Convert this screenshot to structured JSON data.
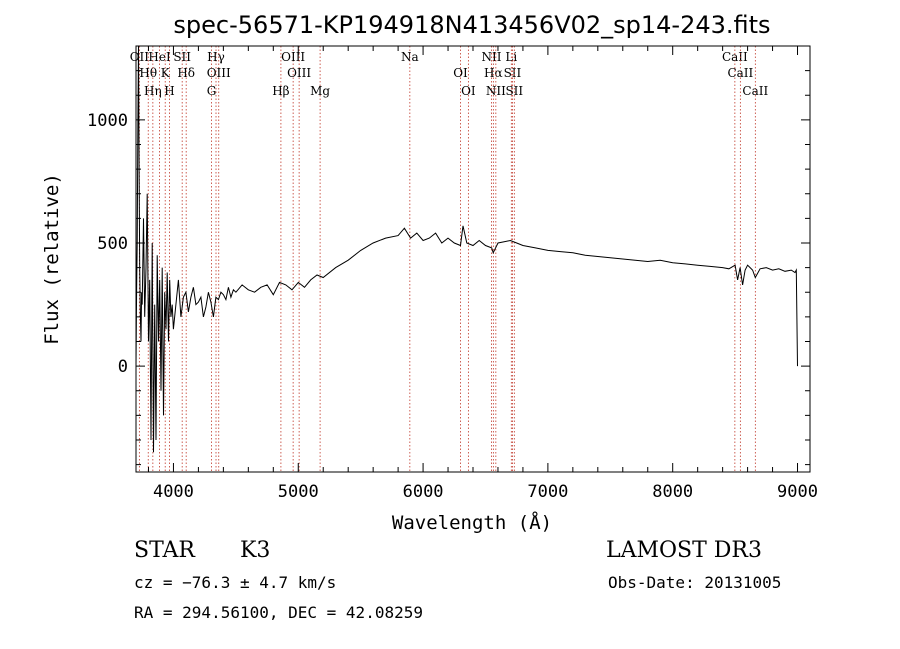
{
  "chart_data": {
    "type": "line",
    "title": "spec-56571-KP194918N413456V02_sp14-243.fits",
    "xlabel": "Wavelength (Å)",
    "ylabel": "Flux (relative)",
    "xlim": [
      3700,
      9100
    ],
    "ylim": [
      -430,
      1300
    ],
    "xticks": [
      4000,
      5000,
      6000,
      7000,
      8000,
      9000
    ],
    "yticks": [
      0,
      500,
      1000
    ],
    "grid": false,
    "series": [
      {
        "name": "flux",
        "x": [
          3700,
          3705,
          3710,
          3715,
          3720,
          3725,
          3730,
          3735,
          3740,
          3745,
          3750,
          3760,
          3770,
          3780,
          3790,
          3800,
          3810,
          3820,
          3830,
          3840,
          3850,
          3860,
          3870,
          3880,
          3890,
          3900,
          3910,
          3920,
          3930,
          3940,
          3950,
          3960,
          3970,
          3980,
          3990,
          4000,
          4020,
          4040,
          4060,
          4080,
          4100,
          4120,
          4140,
          4160,
          4180,
          4200,
          4220,
          4240,
          4260,
          4280,
          4300,
          4320,
          4340,
          4360,
          4380,
          4400,
          4420,
          4440,
          4460,
          4480,
          4500,
          4550,
          4600,
          4650,
          4700,
          4750,
          4800,
          4850,
          4900,
          4950,
          5000,
          5050,
          5100,
          5150,
          5200,
          5300,
          5400,
          5500,
          5600,
          5700,
          5800,
          5850,
          5900,
          5950,
          6000,
          6050,
          6100,
          6150,
          6200,
          6250,
          6300,
          6320,
          6350,
          6400,
          6450,
          6500,
          6550,
          6562,
          6600,
          6650,
          6700,
          6750,
          6800,
          6900,
          7000,
          7100,
          7200,
          7300,
          7400,
          7500,
          7600,
          7700,
          7800,
          7900,
          8000,
          8100,
          8200,
          8300,
          8400,
          8450,
          8500,
          8520,
          8540,
          8560,
          8580,
          8600,
          8620,
          8640,
          8662,
          8700,
          8750,
          8800,
          8850,
          8900,
          8950,
          8980,
          8990,
          9000
        ],
        "values": [
          0,
          300,
          500,
          1000,
          1350,
          800,
          400,
          200,
          100,
          300,
          250,
          600,
          200,
          400,
          700,
          100,
          350,
          -300,
          500,
          -350,
          250,
          -300,
          450,
          100,
          350,
          -100,
          400,
          -200,
          300,
          150,
          380,
          100,
          350,
          200,
          250,
          150,
          250,
          350,
          200,
          280,
          300,
          220,
          280,
          320,
          250,
          260,
          280,
          200,
          240,
          300,
          260,
          200,
          280,
          270,
          300,
          290,
          270,
          320,
          280,
          310,
          300,
          330,
          310,
          300,
          320,
          330,
          290,
          340,
          330,
          310,
          340,
          320,
          350,
          370,
          360,
          400,
          430,
          470,
          500,
          520,
          530,
          560,
          520,
          540,
          510,
          520,
          540,
          500,
          520,
          500,
          490,
          570,
          500,
          490,
          510,
          490,
          480,
          460,
          500,
          505,
          510,
          500,
          490,
          480,
          470,
          465,
          460,
          450,
          445,
          440,
          435,
          430,
          425,
          430,
          420,
          415,
          410,
          405,
          400,
          395,
          410,
          350,
          400,
          330,
          390,
          410,
          400,
          390,
          360,
          395,
          400,
          390,
          395,
          385,
          390,
          380,
          390,
          0
        ]
      }
    ],
    "lines": [
      {
        "label": "OII",
        "x": 3727
      },
      {
        "label": "Hθ",
        "x": 3798
      },
      {
        "label": "Hη",
        "x": 3835
      },
      {
        "label": "HeI",
        "x": 3889
      },
      {
        "label": "K",
        "x": 3934
      },
      {
        "label": "H",
        "x": 3968
      },
      {
        "label": "SII",
        "x": 4070
      },
      {
        "label": "Hδ",
        "x": 4102
      },
      {
        "label": "G",
        "x": 4305
      },
      {
        "label": "Hγ",
        "x": 4341
      },
      {
        "label": "OIII",
        "x": 4363
      },
      {
        "label": "Hβ",
        "x": 4861
      },
      {
        "label": "OIII",
        "x": 4959
      },
      {
        "label": "OIII",
        "x": 5007
      },
      {
        "label": "Mg",
        "x": 5175
      },
      {
        "label": "Na",
        "x": 5894
      },
      {
        "label": "OI",
        "x": 6300
      },
      {
        "label": "OI",
        "x": 6363
      },
      {
        "label": "NII",
        "x": 6548
      },
      {
        "label": "Hα",
        "x": 6563
      },
      {
        "label": "NII",
        "x": 6583
      },
      {
        "label": "Li",
        "x": 6707
      },
      {
        "label": "SII",
        "x": 6716
      },
      {
        "label": "SII",
        "x": 6731
      },
      {
        "label": "CaII",
        "x": 8498
      },
      {
        "label": "CaII",
        "x": 8542
      },
      {
        "label": "CaII",
        "x": 8662
      }
    ]
  },
  "info": {
    "object_class": "STAR",
    "subclass": "K3",
    "cz_text": "cz = −76.3 ± 4.7 km/s",
    "coords_text": "RA = 294.56100, DEC =  42.08259",
    "survey": "LAMOST DR3",
    "obs_date": "Obs-Date: 20131005"
  }
}
